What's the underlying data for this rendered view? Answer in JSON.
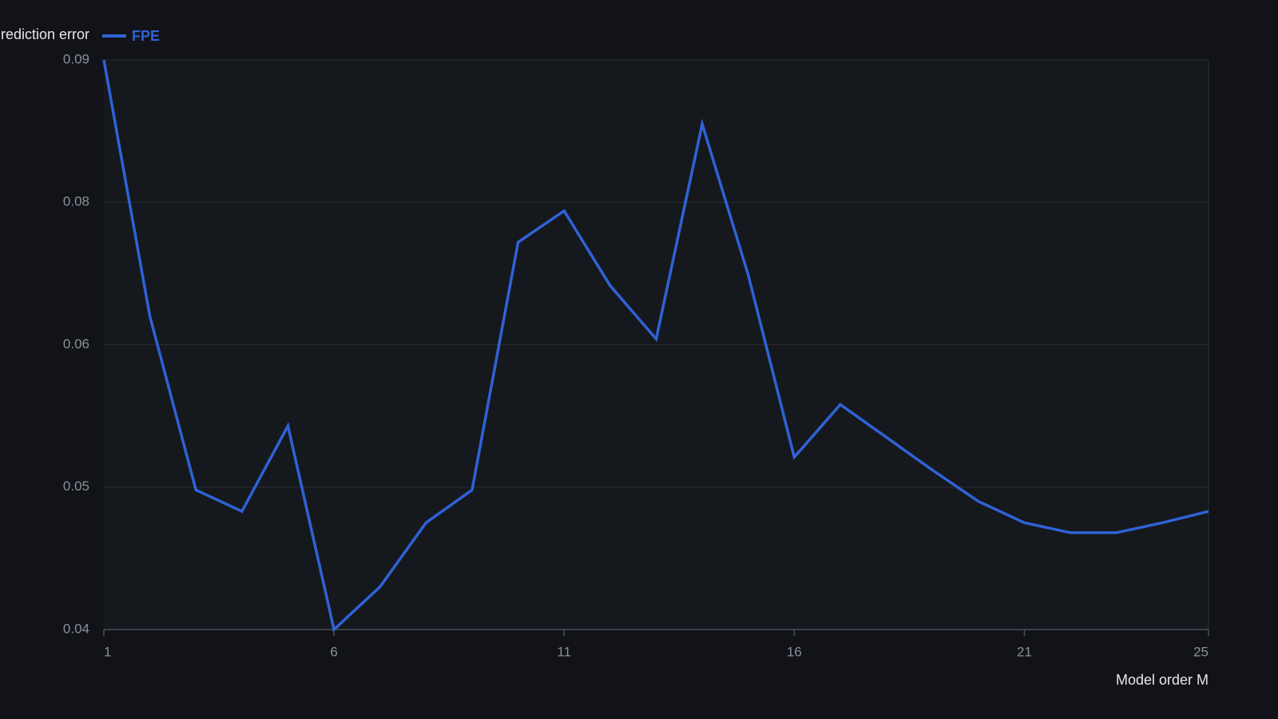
{
  "chart_data": {
    "type": "line",
    "y_label": "Prediction error",
    "x_label": "Model order M",
    "x": [
      1,
      2,
      3,
      4,
      5,
      6,
      7,
      8,
      9,
      10,
      11,
      12,
      13,
      14,
      15,
      16,
      17,
      18,
      19,
      20,
      21,
      22,
      23,
      24,
      25
    ],
    "series": [
      {
        "name": "FPE",
        "color": "#2f62d6",
        "values": [
          0.09,
          0.064,
          0.0498,
          0.0483,
          0.0543,
          0.04,
          0.043,
          0.0475,
          0.0498,
          0.0744,
          0.0788,
          0.0683,
          0.0608,
          0.0855,
          0.0698,
          0.0521,
          0.0558,
          0.0535,
          0.0512,
          0.049,
          0.0475,
          0.0468,
          0.0468,
          0.0475,
          0.0483
        ]
      }
    ],
    "xlim": [
      1,
      25
    ],
    "xticks": [
      1,
      6,
      11,
      16,
      21,
      25
    ],
    "ylim": [
      0.04,
      0.09
    ],
    "yticks": [
      0.04,
      0.05,
      0.06,
      0.08,
      0.09
    ],
    "grid": true
  }
}
